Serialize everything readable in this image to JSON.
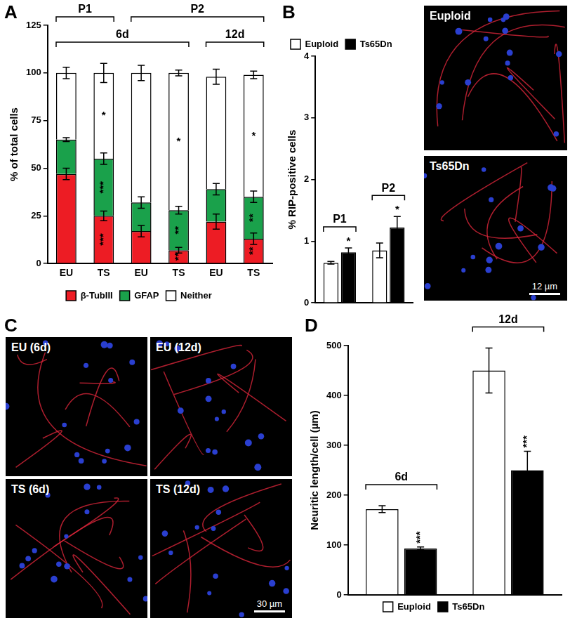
{
  "chart_data": [
    {
      "panel": "A",
      "type": "bar",
      "stacked": true,
      "categories": [
        "EU",
        "TS",
        "EU",
        "TS",
        "EU",
        "TS"
      ],
      "brackets": [
        [
          {
            "label": "P1",
            "span": [
              0,
              1
            ]
          },
          {
            "label": "P2",
            "span": [
              2,
              5
            ]
          }
        ],
        [
          {
            "label": "6d",
            "span": [
              0,
              3
            ]
          },
          {
            "label": "12d",
            "span": [
              4,
              5
            ]
          }
        ]
      ],
      "y_label": "% of total cells",
      "ylim": [
        0,
        125
      ],
      "yticks": [
        0,
        25,
        50,
        75,
        100,
        125
      ],
      "legend": "bottom",
      "series": [
        {
          "name": "β-TubIII",
          "color": "#ed1c24",
          "values": [
            47,
            25,
            17,
            7,
            22,
            13
          ],
          "errors": [
            3,
            2.5,
            3,
            1.5,
            4,
            3
          ],
          "significance": [
            null,
            "***",
            null,
            "**",
            null,
            "**"
          ]
        },
        {
          "name": "GFAP",
          "color": "#1aa14b",
          "values": [
            18,
            30,
            15,
            21,
            17,
            22
          ],
          "errors": [
            1,
            3,
            3,
            2,
            3,
            3
          ],
          "significance": [
            null,
            "***",
            null,
            "**",
            null,
            "**"
          ]
        },
        {
          "name": "Neither",
          "color": "#ffffff",
          "values": [
            35,
            45,
            68,
            72,
            59,
            64
          ],
          "errors": [
            3,
            5,
            4,
            1.5,
            4,
            2
          ],
          "significance": [
            null,
            "*",
            null,
            "*",
            null,
            "*"
          ]
        }
      ]
    },
    {
      "panel": "B",
      "type": "bar",
      "categories": [
        "P1",
        "P2"
      ],
      "y_label": "% RIP-positive cells",
      "ylim": [
        0,
        4
      ],
      "yticks": [
        0,
        1,
        2,
        3,
        4
      ],
      "legend": "top-left",
      "tick_labels": "y",
      "series": [
        {
          "name": "Euploid",
          "color": "#ffffff",
          "values": [
            0.65,
            0.85
          ],
          "errors": [
            0.02,
            0.12
          ],
          "significance": [
            null,
            null
          ]
        },
        {
          "name": "Ts65Dn",
          "color": "#000000",
          "values": [
            0.82,
            1.22
          ],
          "errors": [
            0.07,
            0.18
          ],
          "significance": [
            "*",
            "*"
          ]
        }
      ]
    },
    {
      "panel": "D",
      "type": "bar",
      "categories": [
        "6d",
        "12d"
      ],
      "y_label": "Neuritic length/cell (µm)",
      "ylim": [
        0,
        500
      ],
      "yticks": [
        0,
        100,
        200,
        300,
        400,
        500
      ],
      "legend": "bottom",
      "tick_labels": "y",
      "series": [
        {
          "name": "Euploid",
          "color": "#ffffff",
          "values": [
            172,
            450
          ],
          "errors": [
            7,
            45
          ],
          "significance": [
            null,
            null
          ]
        },
        {
          "name": "Ts65Dn",
          "color": "#000000",
          "values": [
            93,
            250
          ],
          "errors": [
            3,
            38
          ],
          "significance": [
            "***",
            "***"
          ]
        }
      ]
    }
  ],
  "images": [
    {
      "labels": [
        "Euploid",
        "Ts65Dn"
      ],
      "scale_bar": "12 µm"
    },
    {
      "panel": "C",
      "labels": [
        "EU (6d)",
        "EU (12d)",
        "TS (6d)",
        "TS (12d)"
      ],
      "scale_bar": "30 µm"
    }
  ]
}
